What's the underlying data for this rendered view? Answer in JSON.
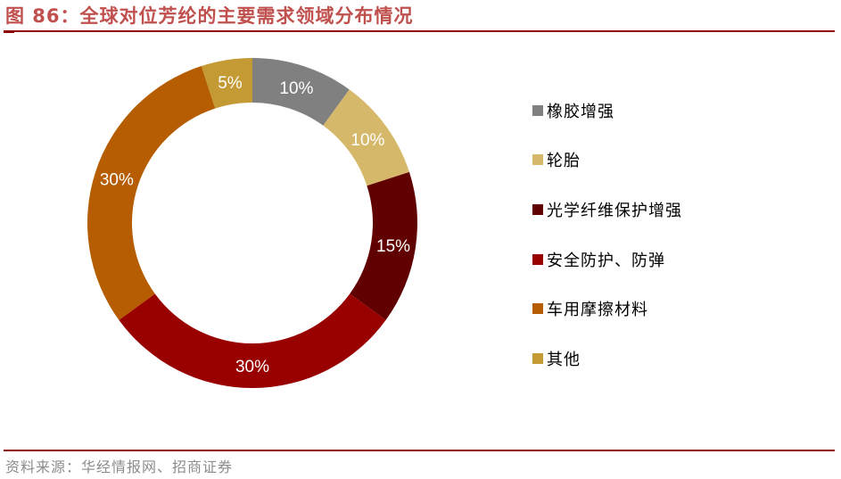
{
  "header": {
    "figure_label": "图 86：",
    "title": "全球对位芳纶的主要需求领域分布情况"
  },
  "footer": {
    "source": "资料来源：华经情报网、招商证券"
  },
  "legend": {
    "items": [
      {
        "label": "橡胶增强",
        "color": "#808080"
      },
      {
        "label": "轮胎",
        "color": "#d6b86a"
      },
      {
        "label": "光学纤维保护增强",
        "color": "#600000"
      },
      {
        "label": "安全防护、防弹",
        "color": "#990000"
      },
      {
        "label": "车用摩擦材料",
        "color": "#b55d00"
      },
      {
        "label": "其他",
        "color": "#c49a35"
      }
    ]
  },
  "slice_labels": [
    "10%",
    "10%",
    "15%",
    "30%",
    "30%",
    "5%"
  ],
  "chart_data": {
    "type": "pie",
    "subtype": "donut",
    "title": "全球对位芳纶的主要需求领域分布情况",
    "categories": [
      "橡胶增强",
      "轮胎",
      "光学纤维保护增强",
      "安全防护、防弹",
      "车用摩擦材料",
      "其他"
    ],
    "values": [
      10,
      10,
      15,
      30,
      30,
      5
    ],
    "unit": "%",
    "colors": [
      "#808080",
      "#d6b86a",
      "#600000",
      "#990000",
      "#b55d00",
      "#c49a35"
    ],
    "start_angle": "12 o'clock, clockwise",
    "legend_position": "right",
    "data_labels": [
      "10%",
      "10%",
      "15%",
      "30%",
      "30%",
      "5%"
    ],
    "source": "资料来源：华经情报网、招商证券"
  }
}
